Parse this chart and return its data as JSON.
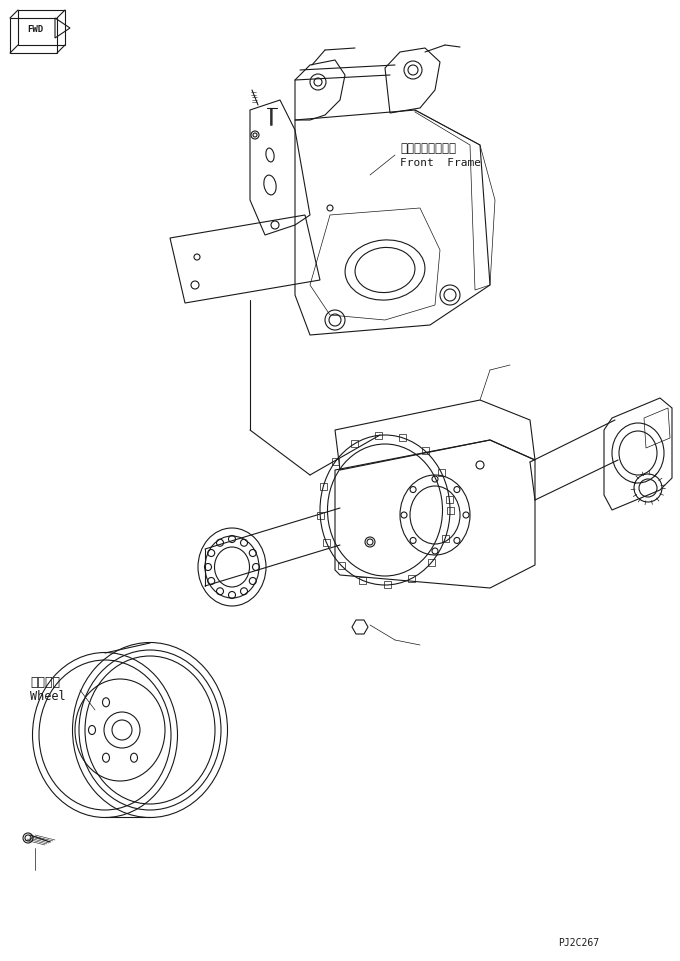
{
  "bg_color": "#ffffff",
  "line_color": "#1a1a1a",
  "lw": 0.8,
  "tlw": 0.5,
  "title_code": "PJ2C267",
  "fwd_label": "FWD",
  "front_frame_jp": "フロントフレーム",
  "front_frame_en": "Front  Frame",
  "wheel_jp": "ホイール",
  "wheel_en": "Wheel",
  "fig_width": 6.8,
  "fig_height": 9.61,
  "dpi": 100
}
